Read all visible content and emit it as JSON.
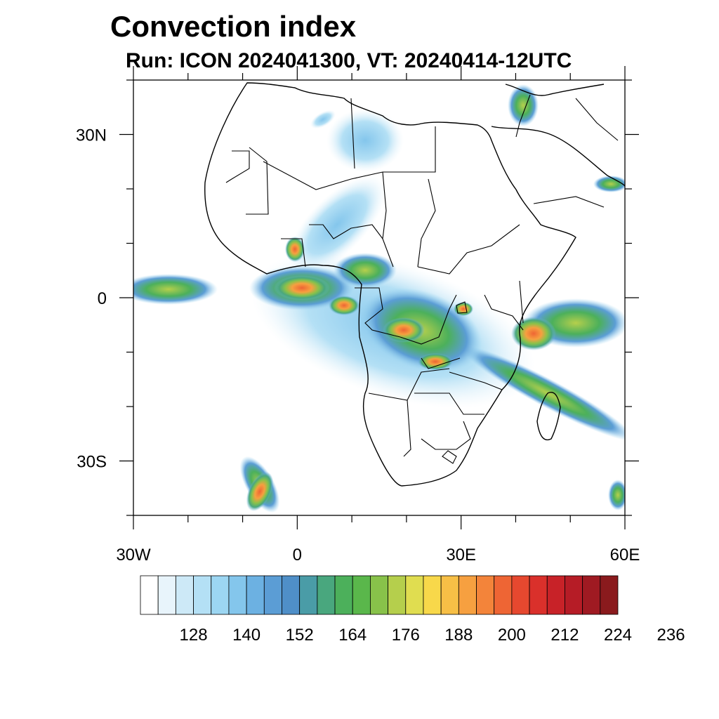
{
  "title": "Convection index",
  "subtitle": "Run: ICON 2024041300,  VT: 20240414-12UTC",
  "map": {
    "lon_range": [
      -30,
      60
    ],
    "lat_range": [
      -40,
      40
    ],
    "x_ticks": [
      {
        "lon": -30,
        "label": "30W"
      },
      {
        "lon": 0,
        "label": "0"
      },
      {
        "lon": 30,
        "label": "30E"
      },
      {
        "lon": 60,
        "label": "60E"
      }
    ],
    "y_ticks": [
      {
        "lat": 30,
        "label": "30N"
      },
      {
        "lat": 0,
        "label": "0"
      },
      {
        "lat": -30,
        "label": "30S"
      }
    ]
  },
  "colorbar": {
    "colors": [
      "#ffffff",
      "#e8f4fb",
      "#cde9f7",
      "#b4e0f5",
      "#9cd6f2",
      "#84c6ec",
      "#6cb1e2",
      "#5b9dd5",
      "#4f8fc8",
      "#4a9ca7",
      "#49a77e",
      "#4cb05b",
      "#5ab74b",
      "#88c24a",
      "#b5cf4c",
      "#e0dd50",
      "#f8d84a",
      "#f7bf46",
      "#f6a040",
      "#f3843a",
      "#ee6534",
      "#e6482f",
      "#da302b",
      "#c82228",
      "#b61c26",
      "#9f1a22",
      "#8a1a1d"
    ],
    "labels": [
      "128",
      "140",
      "152",
      "164",
      "176",
      "188",
      "200",
      "212",
      "224",
      "236"
    ]
  }
}
